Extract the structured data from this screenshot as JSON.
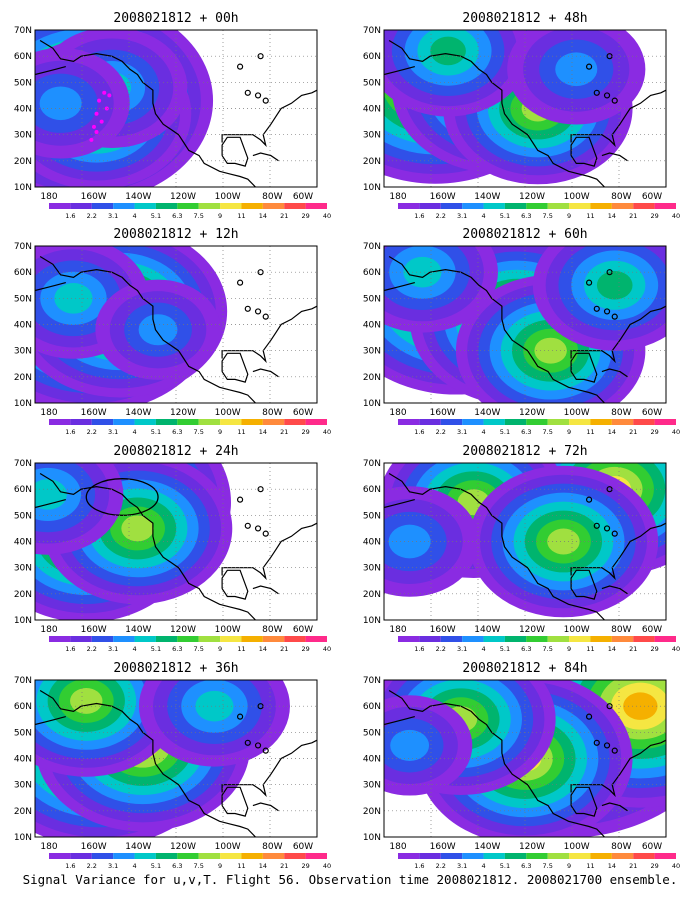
{
  "figure_caption": "Signal Variance for u,v,T. Flight 56. Observation time 2008021812. 2008021700 ensemble.",
  "colors": {
    "scale": [
      "#8a2be2",
      "#6a2ee0",
      "#3050e8",
      "#1e90ff",
      "#00c8c8",
      "#00b46e",
      "#32cd32",
      "#a0e040",
      "#f5e642",
      "#f5b000",
      "#ff8a3c",
      "#ff4a4a",
      "#ff2a8a"
    ],
    "coast": "#000000",
    "track_marker": "#ff00ff"
  },
  "chart_data": [
    {
      "type": "heatmap",
      "title": "2008021812 + 00h",
      "xlabels": [
        "180",
        "160W",
        "140W",
        "120W",
        "100W",
        "80W",
        "60W"
      ],
      "ylabels": [
        "70N",
        "60N",
        "50N",
        "40N",
        "30N",
        "20N",
        "10N"
      ],
      "xlim_deg_lon": [
        -170,
        -60
      ],
      "ylim_deg_lat": [
        10,
        70
      ],
      "colorbar_labels": [
        "1.6",
        "2.2",
        "3.1",
        "4",
        "5.1",
        "6.3",
        "7.5",
        "9",
        "11",
        "14",
        "21",
        "29",
        "40"
      ],
      "blobs": [
        {
          "lon": -150,
          "lat": 43,
          "value": 14
        },
        {
          "lon": -146,
          "lat": 38,
          "value": 9
        },
        {
          "lon": -140,
          "lat": 48,
          "value": 6
        },
        {
          "lon": -160,
          "lat": 42,
          "value": 5
        }
      ],
      "track": [
        [
          -148,
          28
        ],
        [
          -147,
          33
        ],
        [
          -146,
          38
        ],
        [
          -145,
          43
        ],
        [
          -143,
          46
        ],
        [
          -141,
          45
        ],
        [
          -142,
          40
        ],
        [
          -144,
          35
        ],
        [
          -146,
          31
        ]
      ]
    },
    {
      "type": "heatmap",
      "title": "2008021812 + 48h",
      "xlabels": [
        "180",
        "160W",
        "140W",
        "120W",
        "100W",
        "80W",
        "60W"
      ],
      "ylabels": [
        "70N",
        "60N",
        "50N",
        "40N",
        "30N",
        "20N",
        "10N"
      ],
      "xlim_deg_lon": [
        -170,
        -60
      ],
      "ylim_deg_lat": [
        10,
        70
      ],
      "colorbar_labels": [
        "1.6",
        "2.2",
        "3.1",
        "4",
        "5.1",
        "6.3",
        "7.5",
        "9",
        "11",
        "14",
        "21",
        "29",
        "40"
      ],
      "blobs": [
        {
          "lon": -150,
          "lat": 50,
          "value": 14
        },
        {
          "lon": -125,
          "lat": 48,
          "value": 11
        },
        {
          "lon": -110,
          "lat": 40,
          "value": 9
        },
        {
          "lon": -145,
          "lat": 62,
          "value": 7
        },
        {
          "lon": -95,
          "lat": 55,
          "value": 5
        }
      ]
    },
    {
      "type": "heatmap",
      "title": "2008021812 + 12h",
      "xlabels": [
        "180",
        "160W",
        "140W",
        "120W",
        "100W",
        "80W",
        "60W"
      ],
      "ylabels": [
        "70N",
        "60N",
        "50N",
        "40N",
        "30N",
        "20N",
        "10N"
      ],
      "xlim_deg_lon": [
        -170,
        -60
      ],
      "ylim_deg_lat": [
        10,
        70
      ],
      "colorbar_labels": [
        "1.6",
        "2.2",
        "3.1",
        "4",
        "5.1",
        "6.3",
        "7.5",
        "9",
        "11",
        "14",
        "21",
        "29",
        "40"
      ],
      "blobs": [
        {
          "lon": -148,
          "lat": 45,
          "value": 14
        },
        {
          "lon": -137,
          "lat": 45,
          "value": 11
        },
        {
          "lon": -155,
          "lat": 50,
          "value": 6
        },
        {
          "lon": -122,
          "lat": 38,
          "value": 4
        }
      ]
    },
    {
      "type": "heatmap",
      "title": "2008021812 + 60h",
      "xlabels": [
        "180",
        "160W",
        "140W",
        "120W",
        "100W",
        "80W",
        "60W"
      ],
      "ylabels": [
        "70N",
        "60N",
        "50N",
        "40N",
        "30N",
        "20N",
        "10N"
      ],
      "xlim_deg_lon": [
        -170,
        -60
      ],
      "ylim_deg_lat": [
        10,
        70
      ],
      "colorbar_labels": [
        "1.6",
        "2.2",
        "3.1",
        "4",
        "5.1",
        "6.3",
        "7.5",
        "9",
        "11",
        "14",
        "21",
        "29",
        "40"
      ],
      "blobs": [
        {
          "lon": -142,
          "lat": 52,
          "value": 14
        },
        {
          "lon": -118,
          "lat": 42,
          "value": 11
        },
        {
          "lon": -105,
          "lat": 30,
          "value": 9
        },
        {
          "lon": -80,
          "lat": 55,
          "value": 7
        },
        {
          "lon": -155,
          "lat": 60,
          "value": 6
        }
      ]
    },
    {
      "type": "heatmap",
      "title": "2008021812 + 24h",
      "xlabels": [
        "180",
        "160W",
        "140W",
        "120W",
        "100W",
        "80W",
        "60W"
      ],
      "ylabels": [
        "70N",
        "60N",
        "50N",
        "40N",
        "30N",
        "20N",
        "10N"
      ],
      "xlim_deg_lon": [
        -170,
        -60
      ],
      "ylim_deg_lat": [
        10,
        70
      ],
      "colorbar_labels": [
        "1.6",
        "2.2",
        "3.1",
        "4",
        "5.1",
        "6.3",
        "7.5",
        "9",
        "11",
        "14",
        "21",
        "29",
        "40"
      ],
      "blobs": [
        {
          "lon": -143,
          "lat": 55,
          "value": 14
        },
        {
          "lon": -150,
          "lat": 42,
          "value": 11
        },
        {
          "lon": -130,
          "lat": 45,
          "value": 9
        },
        {
          "lon": -165,
          "lat": 58,
          "value": 6
        }
      ],
      "ellipse": {
        "lon": -136,
        "lat": 57,
        "rlon": 14,
        "rlat": 7
      }
    },
    {
      "type": "heatmap",
      "title": "2008021812 + 72h",
      "xlabels": [
        "180",
        "160W",
        "140W",
        "120W",
        "100W",
        "80W",
        "60W"
      ],
      "ylabels": [
        "70N",
        "60N",
        "50N",
        "40N",
        "30N",
        "20N",
        "10N"
      ],
      "xlim_deg_lon": [
        -170,
        -60
      ],
      "ylim_deg_lat": [
        10,
        70
      ],
      "colorbar_labels": [
        "1.6",
        "2.2",
        "3.1",
        "4",
        "5.1",
        "6.3",
        "7.5",
        "9",
        "11",
        "14",
        "21",
        "29",
        "40"
      ],
      "blobs": [
        {
          "lon": -110,
          "lat": 62,
          "value": 14
        },
        {
          "lon": -80,
          "lat": 60,
          "value": 11
        },
        {
          "lon": -135,
          "lat": 55,
          "value": 9
        },
        {
          "lon": -100,
          "lat": 40,
          "value": 9
        },
        {
          "lon": -160,
          "lat": 40,
          "value": 5
        }
      ]
    },
    {
      "type": "heatmap",
      "title": "2008021812 + 36h",
      "xlabels": [
        "180",
        "160W",
        "140W",
        "120W",
        "100W",
        "80W",
        "60W"
      ],
      "ylabels": [
        "70N",
        "60N",
        "50N",
        "40N",
        "30N",
        "20N",
        "10N"
      ],
      "xlim_deg_lon": [
        -170,
        -60
      ],
      "ylim_deg_lat": [
        10,
        70
      ],
      "colorbar_labels": [
        "1.6",
        "2.2",
        "3.1",
        "4",
        "5.1",
        "6.3",
        "7.5",
        "9",
        "11",
        "14",
        "21",
        "29",
        "40"
      ],
      "blobs": [
        {
          "lon": -145,
          "lat": 45,
          "value": 14
        },
        {
          "lon": -128,
          "lat": 45,
          "value": 11
        },
        {
          "lon": -150,
          "lat": 62,
          "value": 9
        },
        {
          "lon": -100,
          "lat": 60,
          "value": 6
        }
      ]
    },
    {
      "type": "heatmap",
      "title": "2008021812 + 84h",
      "xlabels": [
        "180",
        "160W",
        "140W",
        "120W",
        "100W",
        "80W",
        "60W"
      ],
      "ylabels": [
        "70N",
        "60N",
        "50N",
        "40N",
        "30N",
        "20N",
        "10N"
      ],
      "xlim_deg_lon": [
        -170,
        -60
      ],
      "ylim_deg_lat": [
        10,
        70
      ],
      "colorbar_labels": [
        "1.6",
        "2.2",
        "3.1",
        "4",
        "5.1",
        "6.3",
        "7.5",
        "9",
        "11",
        "14",
        "21",
        "29",
        "40"
      ],
      "blobs": [
        {
          "lon": -100,
          "lat": 62,
          "value": 21
        },
        {
          "lon": -70,
          "lat": 60,
          "value": 14
        },
        {
          "lon": -115,
          "lat": 40,
          "value": 11
        },
        {
          "lon": -140,
          "lat": 55,
          "value": 9
        },
        {
          "lon": -160,
          "lat": 45,
          "value": 4
        }
      ]
    }
  ]
}
